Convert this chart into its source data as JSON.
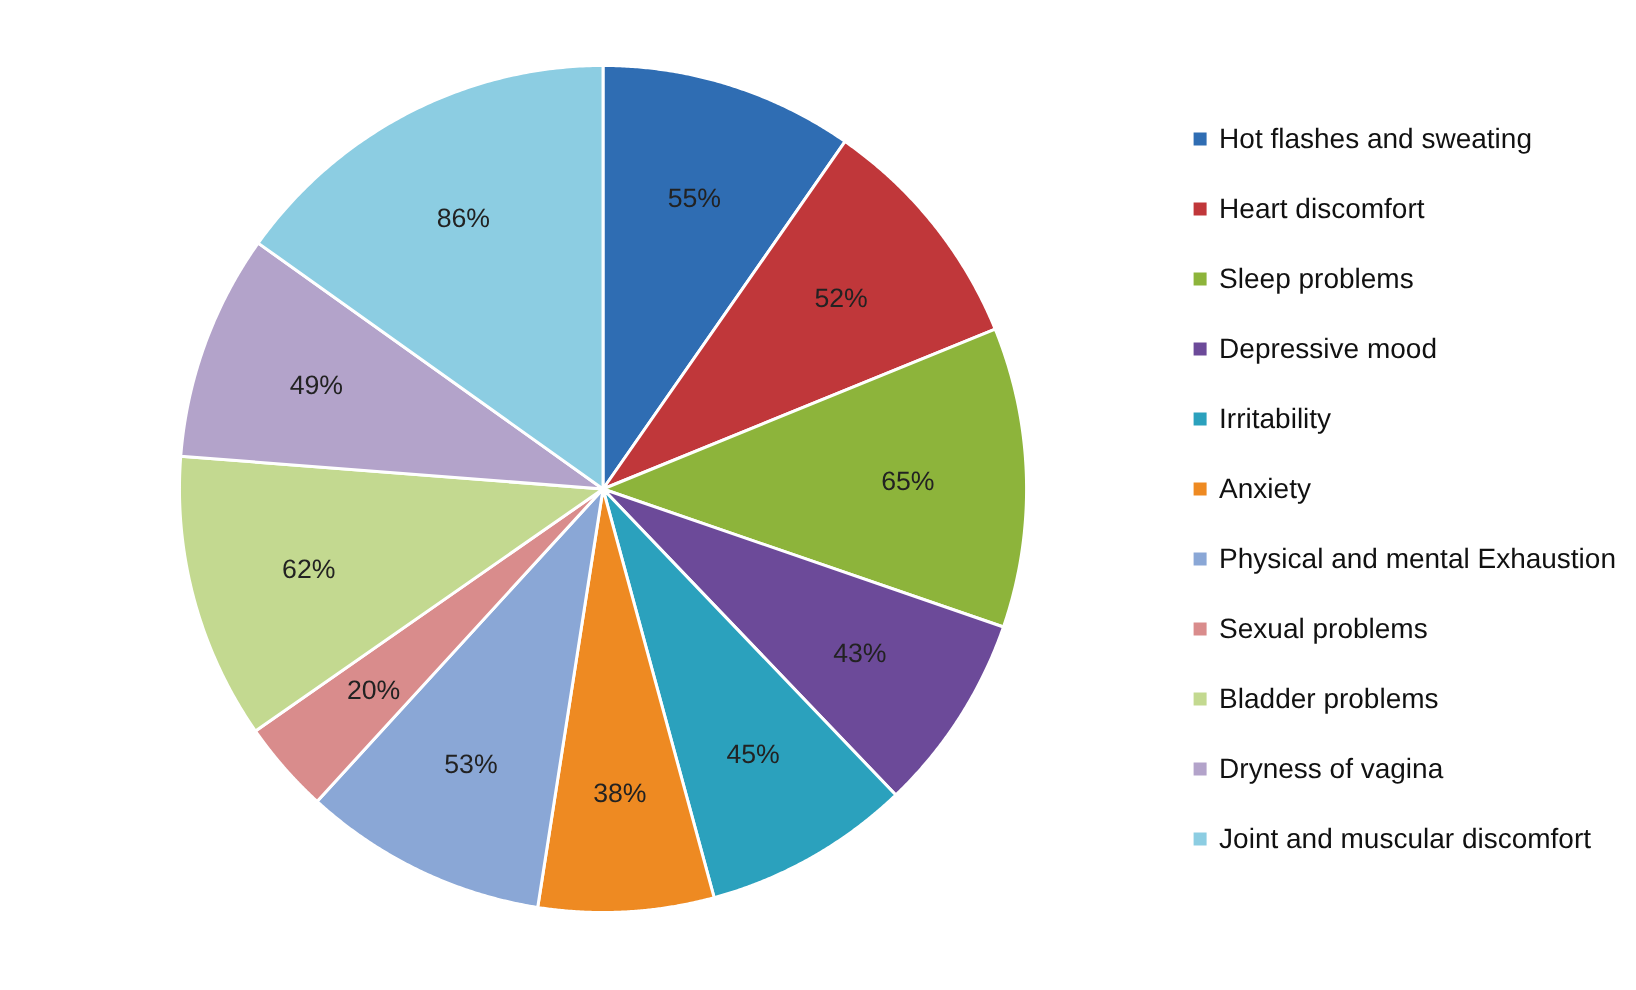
{
  "chart_data": {
    "type": "pie",
    "categories": [
      "Hot flashes and sweating",
      "Heart discomfort",
      "Sleep problems",
      "Depressive mood",
      "Irritability",
      "Anxiety",
      "Physical and mental Exhaustion",
      "Sexual problems",
      "Bladder problems",
      "Dryness of vagina",
      "Joint and muscular discomfort"
    ],
    "values": [
      55,
      52,
      65,
      43,
      45,
      38,
      53,
      20,
      62,
      49,
      86
    ],
    "value_labels": [
      "55%",
      "52%",
      "65%",
      "43%",
      "45%",
      "38%",
      "53%",
      "20%",
      "62%",
      "49%",
      "86%"
    ],
    "colors": [
      "#2f6db3",
      "#c0373a",
      "#8db43b",
      "#6c4a99",
      "#2ba1bd",
      "#ee8a22",
      "#8aa7d6",
      "#d98c8c",
      "#c3d990",
      "#b3a3ca",
      "#8ccde2"
    ],
    "legend": "right"
  }
}
